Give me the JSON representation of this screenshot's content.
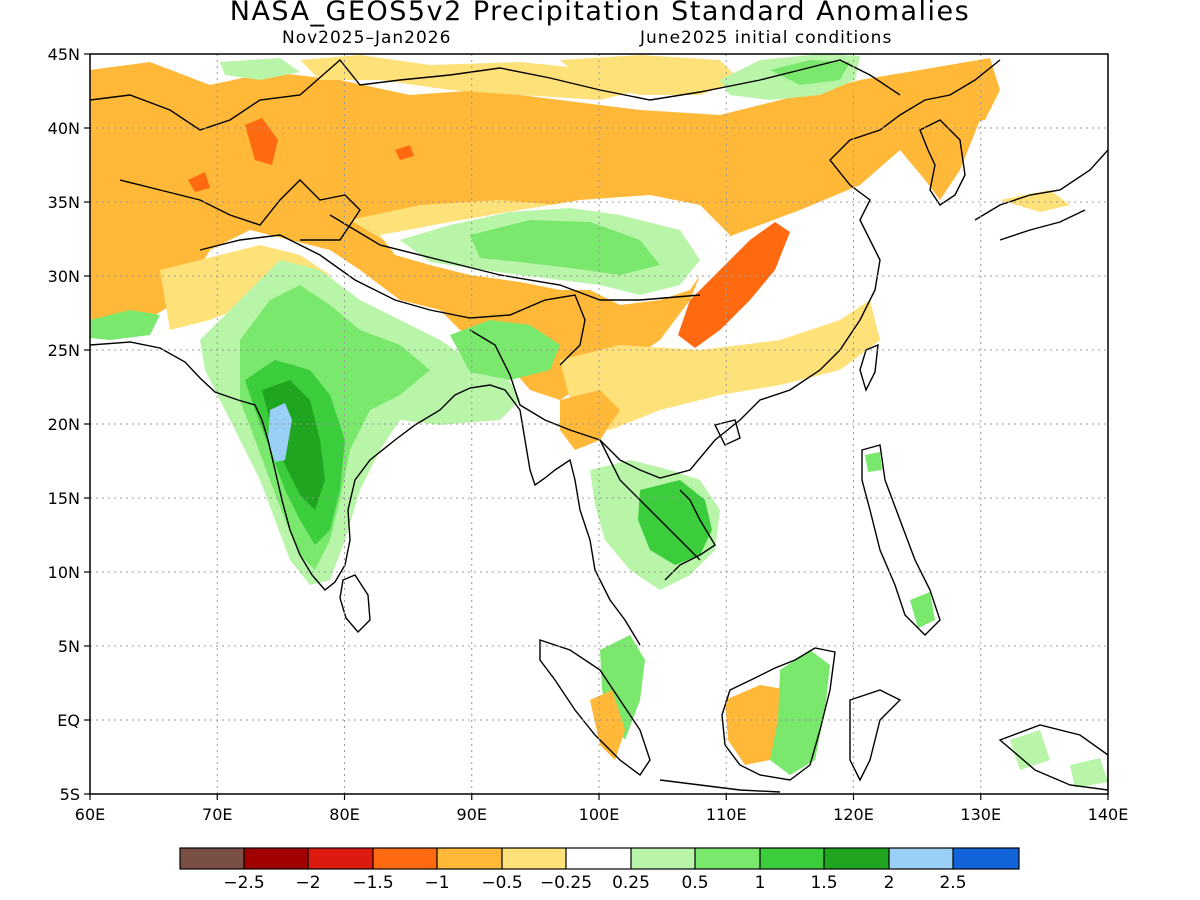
{
  "title": "NASA_GEOS5v2 Precipitation Standard Anomalies",
  "subtitle_left": "Nov2025–Jan2026",
  "subtitle_right": "June2025 initial conditions",
  "axes": {
    "lon_labels": [
      "60E",
      "70E",
      "80E",
      "90E",
      "100E",
      "110E",
      "120E",
      "130E",
      "140E"
    ],
    "lat_labels": [
      "45N",
      "40N",
      "35N",
      "30N",
      "25N",
      "20N",
      "15N",
      "10N",
      "5N",
      "EQ",
      "5S"
    ],
    "lon_range": [
      60,
      140
    ],
    "lat_range": [
      -5,
      45
    ],
    "grid": "dotted"
  },
  "colorbar": {
    "colors": [
      "#7a4f45",
      "#a00000",
      "#dd1a10",
      "#ff6a10",
      "#ffb838",
      "#ffe17a",
      "#ffffff",
      "#b8f5a8",
      "#7ae86d",
      "#3ccd3c",
      "#1fa51f",
      "#9ad0f5",
      "#1264d8"
    ],
    "labels": [
      "−2.5",
      "−2",
      "−1.5",
      "−1",
      "−0.5",
      "−0.25",
      "0.25",
      "0.5",
      "1",
      "1.5",
      "2",
      "2.5"
    ]
  },
  "legend": {
    "dry_strong": "#ff6a10",
    "dry": "#ffb838",
    "dry_weak": "#ffe17a",
    "wet_weak": "#b8f5a8",
    "wet": "#7ae86d",
    "wet_strong": "#3ccd3c",
    "wet_very": "#1fa51f",
    "wet_extreme": "#9ad0f5"
  }
}
